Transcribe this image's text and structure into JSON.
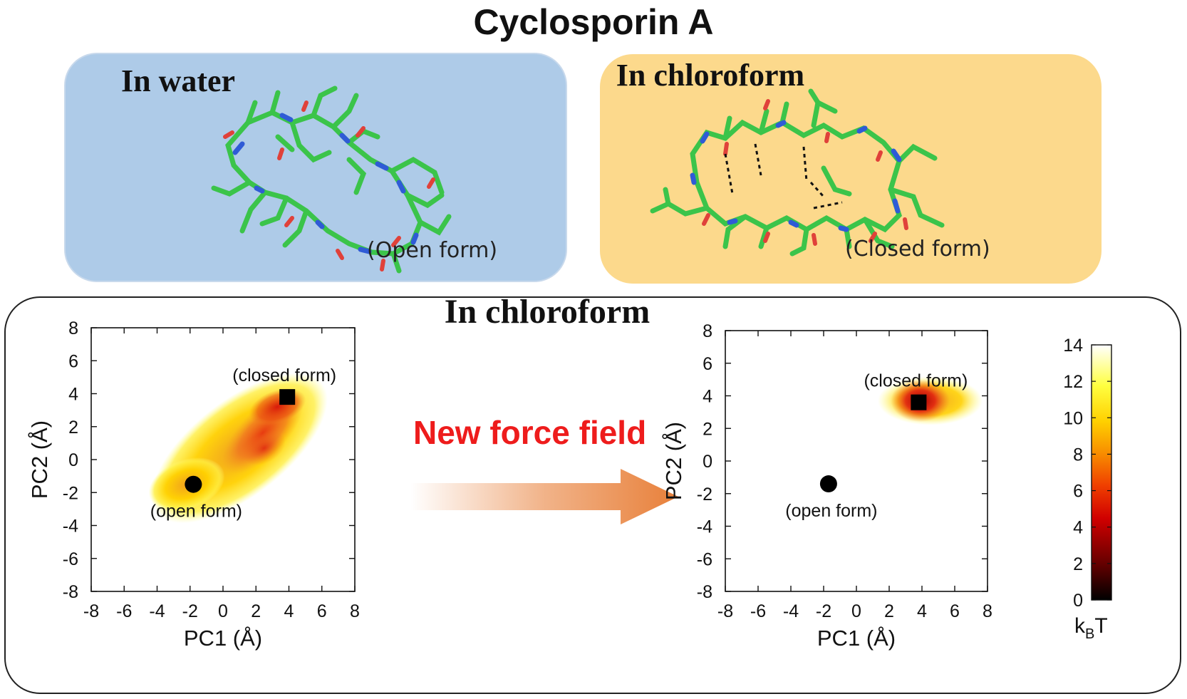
{
  "title": "Cyclosporin A",
  "water_panel": {
    "title": "In water",
    "caption": "(Open form)",
    "color": "#aecbe8"
  },
  "chloroform_panel": {
    "title": "In chloroform",
    "caption": "(Closed form)",
    "color": "#fcd98c"
  },
  "bottom": {
    "title": "In chloroform",
    "arrow_label": "New force field",
    "arrow_color": "#e8803a"
  },
  "chart_data": [
    {
      "type": "heatmap",
      "xlabel": "PC1 (Å)",
      "ylabel": "PC2 (Å)",
      "xlim": [
        -8,
        8
      ],
      "ylim": [
        -8,
        8
      ],
      "xticks": [
        "-8",
        "-6",
        "-4",
        "-2",
        "0",
        "2",
        "4",
        "6",
        "8"
      ],
      "yticks": [
        "8",
        "6",
        "4",
        "2",
        "0",
        "-2",
        "-4",
        "-6",
        "-8"
      ],
      "markers": [
        {
          "label": "(closed form)",
          "shape": "square",
          "x": 3.9,
          "y": 3.8
        },
        {
          "label": "(open form)",
          "shape": "circle",
          "x": -1.8,
          "y": -1.5
        }
      ]
    },
    {
      "type": "heatmap",
      "xlabel": "PC1 (Å)",
      "ylabel": "PC2 (Å)",
      "xlim": [
        -8,
        8
      ],
      "ylim": [
        -8,
        8
      ],
      "xticks": [
        "-8",
        "-6",
        "-4",
        "-2",
        "0",
        "2",
        "4",
        "6",
        "8"
      ],
      "yticks": [
        "8",
        "6",
        "4",
        "2",
        "0",
        "-2",
        "-4",
        "-6",
        "-8"
      ],
      "markers": [
        {
          "label": "(closed form)",
          "shape": "square",
          "x": 3.8,
          "y": 3.6
        },
        {
          "label": "(open form)",
          "shape": "circle",
          "x": -1.7,
          "y": -1.4
        }
      ],
      "colorbar": {
        "label": "kBT",
        "range": [
          0,
          14
        ],
        "ticks": [
          "14",
          "12",
          "10",
          "8",
          "6",
          "4",
          "2",
          "0"
        ]
      }
    }
  ]
}
